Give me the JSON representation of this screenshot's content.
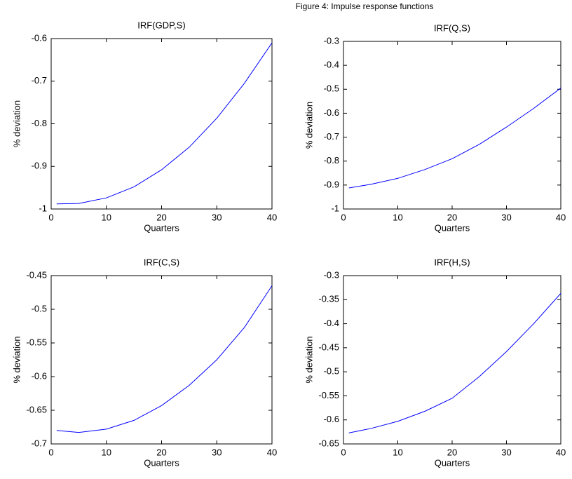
{
  "title": "Figure 4: Impulse response functions",
  "chart_data": [
    {
      "type": "line",
      "title": "IRF(GDP,S)",
      "xlabel": "Quarters",
      "ylabel": "% deviation",
      "x": [
        1,
        5,
        10,
        15,
        20,
        25,
        30,
        35,
        40
      ],
      "series": [
        {
          "color": "#0000ff",
          "values": [
            -0.988,
            -0.987,
            -0.974,
            -0.948,
            -0.908,
            -0.855,
            -0.787,
            -0.705,
            -0.61
          ]
        }
      ],
      "xlim": [
        0,
        40
      ],
      "xticks": [
        0,
        10,
        20,
        30,
        40
      ],
      "ylim": [
        -1,
        -0.6
      ],
      "yticks": [
        -1,
        -0.9,
        -0.8,
        -0.7,
        -0.6
      ]
    },
    {
      "type": "line",
      "title": "IRF(Q,S)",
      "xlabel": "Quarters",
      "ylabel": "% deviation",
      "x": [
        1,
        5,
        10,
        15,
        20,
        25,
        30,
        35,
        40
      ],
      "series": [
        {
          "color": "#0000ff",
          "values": [
            -0.912,
            -0.897,
            -0.872,
            -0.835,
            -0.79,
            -0.73,
            -0.658,
            -0.58,
            -0.495
          ]
        }
      ],
      "xlim": [
        0,
        40
      ],
      "xticks": [
        0,
        10,
        20,
        30,
        40
      ],
      "ylim": [
        -1,
        -0.3
      ],
      "yticks": [
        -1,
        -0.9,
        -0.8,
        -0.7,
        -0.6,
        -0.5,
        -0.4,
        -0.3
      ]
    },
    {
      "type": "line",
      "title": "IRF(C,S)",
      "xlabel": "Quarters",
      "ylabel": "% deviation",
      "x": [
        1,
        5,
        10,
        15,
        20,
        25,
        30,
        35,
        40
      ],
      "series": [
        {
          "color": "#0000ff",
          "values": [
            -0.68,
            -0.683,
            -0.678,
            -0.665,
            -0.643,
            -0.613,
            -0.575,
            -0.527,
            -0.465
          ]
        }
      ],
      "xlim": [
        0,
        40
      ],
      "xticks": [
        0,
        10,
        20,
        30,
        40
      ],
      "ylim": [
        -0.7,
        -0.45
      ],
      "yticks": [
        -0.7,
        -0.65,
        -0.6,
        -0.55,
        -0.5,
        -0.45
      ]
    },
    {
      "type": "line",
      "title": "IRF(H,S)",
      "xlabel": "Quarters",
      "ylabel": "% deviation",
      "x": [
        1,
        5,
        10,
        15,
        20,
        25,
        30,
        35,
        40
      ],
      "series": [
        {
          "color": "#0000ff",
          "values": [
            -0.627,
            -0.618,
            -0.603,
            -0.582,
            -0.555,
            -0.51,
            -0.458,
            -0.4,
            -0.337
          ]
        }
      ],
      "xlim": [
        0,
        40
      ],
      "xticks": [
        0,
        10,
        20,
        30,
        40
      ],
      "ylim": [
        -0.65,
        -0.3
      ],
      "yticks": [
        -0.65,
        -0.6,
        -0.55,
        -0.5,
        -0.45,
        -0.4,
        -0.35,
        -0.3
      ]
    }
  ]
}
